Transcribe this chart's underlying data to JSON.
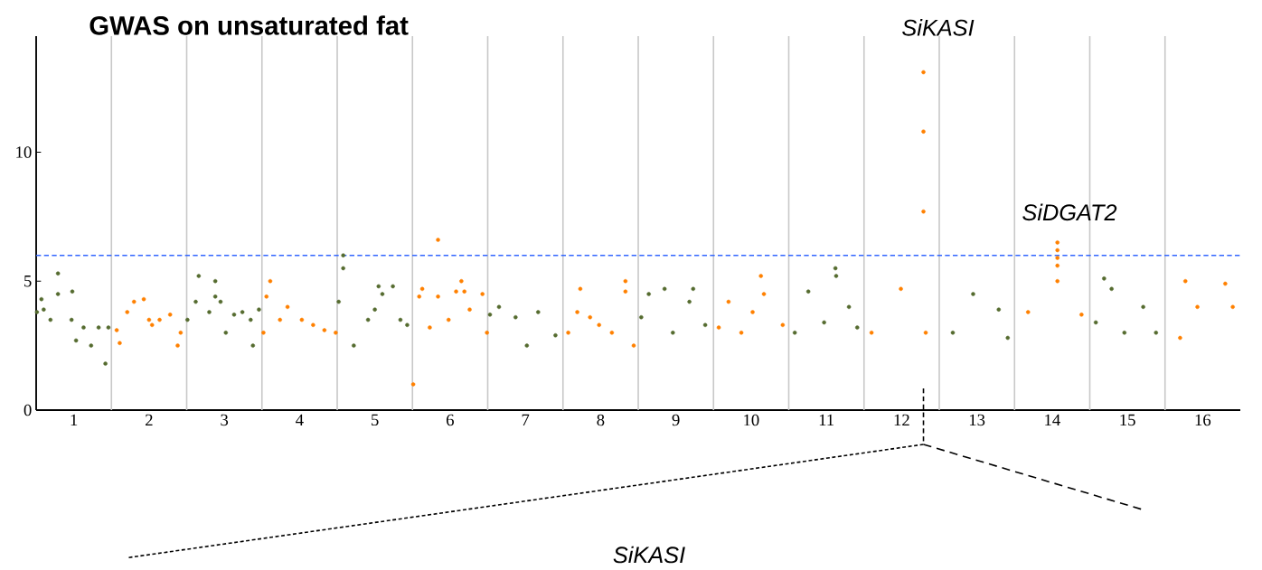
{
  "chart_data": {
    "type": "scatter",
    "title": "GWAS on unsaturated fat",
    "marker": "circle",
    "xlim": [
      0.5,
      16.5
    ],
    "ylim": [
      0,
      14.5
    ],
    "yticks": [
      0,
      5,
      10
    ],
    "xticks": [
      1,
      2,
      3,
      4,
      5,
      6,
      7,
      8,
      9,
      10,
      11,
      12,
      13,
      14,
      15,
      16
    ],
    "series": [
      {
        "color": "#556b2f",
        "x": [
          0.51,
          0.57,
          0.6,
          0.69,
          0.79,
          0.79,
          0.97,
          0.98,
          1.03,
          1.13,
          1.23,
          1.33,
          1.42,
          1.46,
          2.51,
          2.62,
          2.66,
          2.8,
          2.88,
          2.88,
          2.95,
          3.02,
          3.13,
          3.24,
          3.35,
          3.38,
          3.46,
          4.52,
          4.58,
          4.58,
          4.72,
          4.91,
          5.0,
          5.05,
          5.1,
          5.24,
          5.34,
          5.43,
          6.53,
          6.65,
          6.87,
          7.02,
          7.17,
          7.4,
          8.54,
          8.64,
          8.85,
          8.96,
          9.18,
          9.23,
          9.39,
          10.58,
          10.76,
          10.97,
          11.12,
          11.13,
          11.3,
          11.41,
          12.68,
          12.95,
          13.29,
          13.41,
          14.58,
          14.69,
          14.79,
          14.96,
          15.21,
          15.38
        ],
        "values": [
          3.8,
          4.3,
          3.9,
          3.5,
          5.3,
          4.5,
          3.5,
          4.6,
          2.7,
          3.2,
          2.5,
          3.2,
          1.8,
          3.2,
          3.5,
          4.2,
          5.2,
          3.8,
          5.0,
          4.4,
          4.2,
          3.0,
          3.7,
          3.8,
          3.5,
          2.5,
          3.9,
          4.2,
          6.0,
          5.5,
          2.5,
          3.5,
          3.9,
          4.8,
          4.5,
          4.8,
          3.5,
          3.3,
          3.7,
          4.0,
          3.6,
          2.5,
          3.8,
          2.9,
          3.6,
          4.5,
          4.7,
          3.0,
          4.2,
          4.7,
          3.3,
          3.0,
          4.6,
          3.4,
          5.5,
          5.2,
          4.0,
          3.2,
          3.0,
          4.5,
          3.9,
          2.8,
          3.4,
          5.1,
          4.7,
          3.0,
          4.0,
          3.0
        ]
      },
      {
        "color": "#ff8000",
        "x": [
          1.57,
          1.61,
          1.71,
          1.8,
          1.93,
          2.0,
          2.04,
          2.14,
          2.28,
          2.38,
          2.42,
          3.52,
          3.56,
          3.61,
          3.74,
          3.84,
          4.03,
          4.18,
          4.33,
          4.48,
          5.51,
          5.59,
          5.63,
          5.73,
          5.84,
          5.84,
          5.98,
          6.08,
          6.15,
          6.19,
          6.26,
          6.43,
          6.49,
          7.57,
          7.69,
          7.73,
          7.86,
          7.98,
          8.15,
          8.33,
          8.33,
          8.44,
          9.57,
          9.7,
          9.87,
          10.02,
          10.13,
          10.17,
          10.42,
          11.6,
          11.99,
          12.29,
          12.29,
          12.29,
          12.32,
          13.68,
          14.07,
          14.07,
          14.07,
          14.07,
          14.07,
          14.39,
          15.7,
          15.77,
          15.93,
          16.3,
          16.4
        ],
        "values": [
          3.1,
          2.6,
          3.8,
          4.2,
          4.3,
          3.5,
          3.3,
          3.5,
          3.7,
          2.5,
          3.0,
          3.0,
          4.4,
          5.0,
          3.5,
          4.0,
          3.5,
          3.3,
          3.1,
          3.0,
          1.0,
          4.4,
          4.7,
          3.2,
          6.6,
          4.4,
          3.5,
          4.6,
          5.0,
          4.6,
          3.9,
          4.5,
          3.0,
          3.0,
          3.8,
          4.7,
          3.6,
          3.3,
          3.0,
          5.0,
          4.6,
          2.5,
          3.2,
          4.2,
          3.0,
          3.8,
          5.2,
          4.5,
          3.3,
          3.0,
          4.7,
          13.1,
          10.8,
          7.7,
          3.0,
          3.8,
          6.5,
          6.2,
          5.9,
          5.6,
          5.0,
          3.7,
          2.8,
          5.0,
          4.0,
          4.9,
          4.0
        ]
      }
    ],
    "ref_lines": [
      {
        "axis": "y",
        "value": 6,
        "color": "#3366ff",
        "line_style": "dashed"
      },
      {
        "axis": "x",
        "value": 1.5,
        "color": "#c8c8c8"
      },
      {
        "axis": "x",
        "value": 2.5,
        "color": "#c8c8c8"
      },
      {
        "axis": "x",
        "value": 3.5,
        "color": "#c8c8c8"
      },
      {
        "axis": "x",
        "value": 4.5,
        "color": "#c8c8c8"
      },
      {
        "axis": "x",
        "value": 5.5,
        "color": "#c8c8c8"
      },
      {
        "axis": "x",
        "value": 6.5,
        "color": "#c8c8c8"
      },
      {
        "axis": "x",
        "value": 7.5,
        "color": "#c8c8c8"
      },
      {
        "axis": "x",
        "value": 8.5,
        "color": "#c8c8c8"
      },
      {
        "axis": "x",
        "value": 9.5,
        "color": "#c8c8c8"
      },
      {
        "axis": "x",
        "value": 10.5,
        "color": "#c8c8c8"
      },
      {
        "axis": "x",
        "value": 11.5,
        "color": "#c8c8c8"
      },
      {
        "axis": "x",
        "value": 12.5,
        "color": "#c8c8c8"
      },
      {
        "axis": "x",
        "value": 13.5,
        "color": "#c8c8c8"
      },
      {
        "axis": "x",
        "value": 14.5,
        "color": "#c8c8c8"
      },
      {
        "axis": "x",
        "value": 15.5,
        "color": "#c8c8c8"
      }
    ],
    "annotations": [
      {
        "text": "SiKASI",
        "x": 12.29,
        "y": 13.1
      },
      {
        "text": "SiDGAT2",
        "x": 14.07,
        "y": 6.5
      },
      "SiKASI"
    ]
  }
}
